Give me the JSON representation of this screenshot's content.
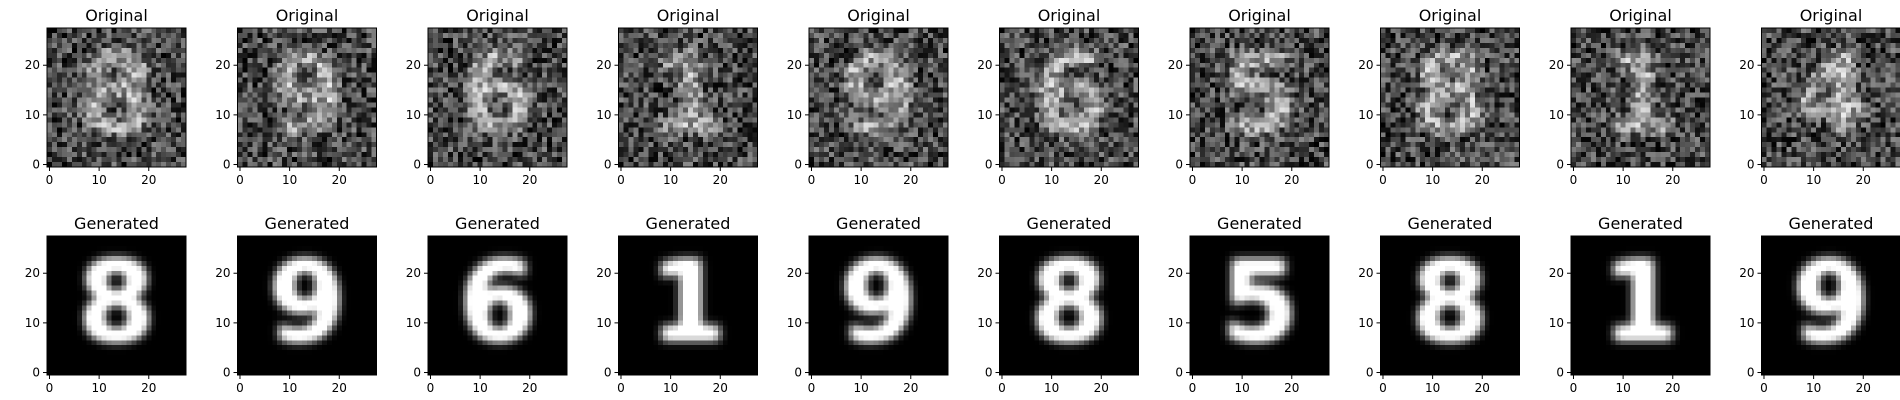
{
  "chart_data": {
    "type": "image-grid",
    "rows": [
      {
        "row_title": "Original",
        "panel_titles": [
          "Original",
          "Original",
          "Original",
          "Original",
          "Original",
          "Original",
          "Original",
          "Original",
          "Original",
          "Original"
        ],
        "style": "noisy",
        "digits": [
          "8",
          "9",
          "6",
          "1",
          "9",
          "6",
          "5",
          "8",
          "1",
          "4"
        ]
      },
      {
        "row_title": "Generated",
        "panel_titles": [
          "Generated",
          "Generated",
          "Generated",
          "Generated",
          "Generated",
          "Generated",
          "Generated",
          "Generated",
          "Generated",
          "Generated"
        ],
        "style": "clean",
        "digits": [
          "8",
          "9",
          "6",
          "1",
          "9",
          "8",
          "5",
          "8",
          "1",
          "9"
        ]
      }
    ],
    "image_size": [
      28,
      28
    ],
    "colormap": "gray",
    "x_ticks": [
      0,
      10,
      20
    ],
    "y_ticks": [
      0,
      10,
      20
    ],
    "x_tick_labels": [
      "0",
      "10",
      "20"
    ],
    "y_tick_labels": [
      "0",
      "10",
      "20"
    ],
    "xlim": [
      -0.5,
      27.5
    ],
    "ylim": [
      27.5,
      -0.5
    ]
  }
}
